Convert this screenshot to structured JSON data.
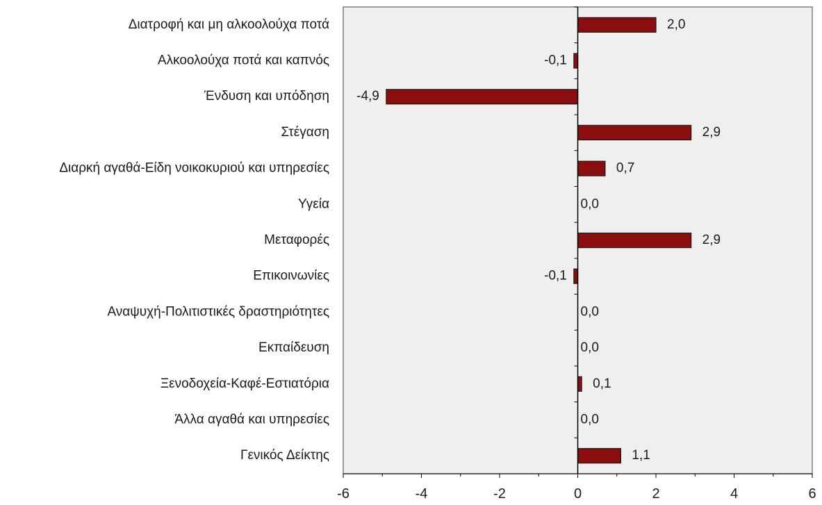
{
  "chart_data": {
    "type": "bar",
    "orientation": "horizontal",
    "categories": [
      "Διατροφή και μη αλκοολούχα ποτά",
      "Αλκοολούχα ποτά και καπνός",
      "Ένδυση και υπόδηση",
      "Στέγαση",
      "Διαρκή αγαθά-Είδη νοικοκυριού και υπηρεσίες",
      "Υγεία",
      "Μεταφορές",
      "Επικοινωνίες",
      "Αναψυχή-Πολιτιστικές δραστηριότητες",
      "Εκπαίδευση",
      "Ξενοδοχεία-Καφέ-Εστιατόρια",
      "Άλλα αγαθά και υπηρεσίες",
      "Γενικός Δείκτης"
    ],
    "values": [
      2.0,
      -0.1,
      -4.9,
      2.9,
      0.7,
      0.0,
      2.9,
      -0.1,
      0.0,
      0.0,
      0.1,
      0.0,
      1.1
    ],
    "value_labels": [
      "2,0",
      "-0,1",
      "-4,9",
      "2,9",
      "0,7",
      "0,0",
      "2,9",
      "-0,1",
      "0,0",
      "0,0",
      "0,1",
      "0,0",
      "1,1"
    ],
    "xlim": [
      -6,
      6
    ],
    "xticks": [
      -6,
      -4,
      -2,
      0,
      2,
      4,
      6
    ],
    "xtick_labels": [
      "-6",
      "-4",
      "-2",
      "0",
      "2",
      "4",
      "6"
    ],
    "title": "",
    "xlabel": "",
    "ylabel": "",
    "grid": false,
    "legend": "none",
    "colors": {
      "bar_fill": "#8b0e0e",
      "bar_stroke": "#1a1a1a",
      "plot_background": "#efefef",
      "plot_border": "#7f7f7f",
      "axis": "#000000"
    }
  }
}
